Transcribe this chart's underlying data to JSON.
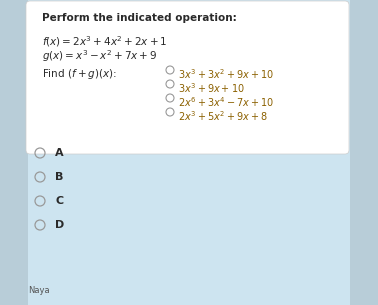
{
  "title": "Perform the indicated operation:",
  "line1": "$f(x) = 2x^3+4x^2+2x+1$",
  "line2": "$g(x) = x^3-x^2+7x+9$",
  "find": "Find $(f+g)(x)$:",
  "options": [
    "$3x^3+3x^2+9x+10$",
    "$3x^3+9x+10$",
    "$2x^6+3x^4-7x+10$",
    "$2x^3+5x^2+9x+8$"
  ],
  "answer_letters": [
    "A",
    "B",
    "C",
    "D"
  ],
  "bg_color": "#cde4f0",
  "card_color": "#ffffff",
  "card_bg2": "#ddeef7",
  "text_color": "#2a2a2a",
  "option_color": "#8B6000",
  "circle_color": "#999999",
  "bottom_bg": "#cde4f0",
  "figw": 3.78,
  "figh": 3.05,
  "dpi": 100
}
